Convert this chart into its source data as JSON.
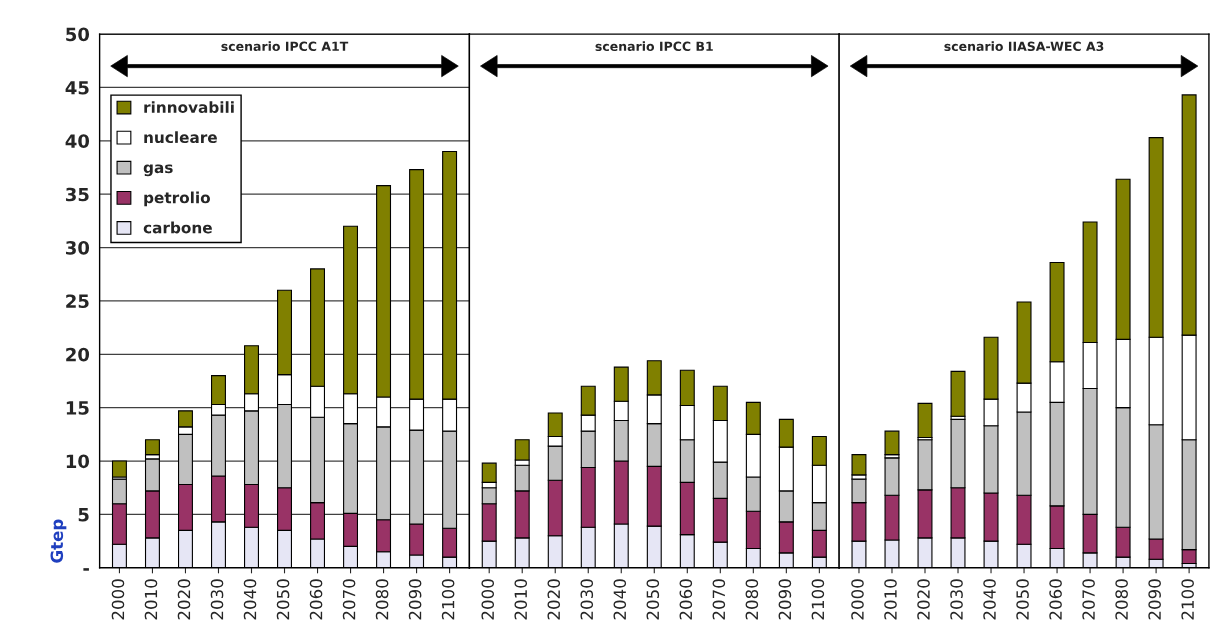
{
  "chart_data": [
    {
      "type": "bar",
      "title": "scenario IPCC A1T",
      "ylabel": "Gtep",
      "stacked": true,
      "legend": "top left",
      "grid": "y",
      "categories": [
        "2000",
        "2010",
        "2020",
        "2030",
        "2040",
        "2050",
        "2060",
        "2070",
        "2080",
        "2090",
        "2100"
      ],
      "ylim": [
        0,
        50
      ],
      "yticks": [
        {
          "value": 0,
          "label": "-"
        },
        5,
        10,
        15,
        20,
        25,
        30,
        35,
        40,
        45,
        50
      ],
      "series": [
        {
          "name": "carbone",
          "color": "#e6e6f5",
          "values": [
            2.2,
            2.8,
            3.5,
            4.3,
            3.8,
            3.5,
            2.7,
            2.0,
            1.5,
            1.2,
            1.0
          ]
        },
        {
          "name": "petrolio",
          "color": "#993366",
          "values": [
            3.8,
            4.4,
            4.3,
            4.3,
            4.0,
            4.0,
            3.4,
            3.1,
            3.0,
            2.9,
            2.7
          ]
        },
        {
          "name": "gas",
          "color": "#c0c0c0",
          "values": [
            2.3,
            3.0,
            4.7,
            5.7,
            6.9,
            7.8,
            8.0,
            8.4,
            8.7,
            8.8,
            9.1
          ]
        },
        {
          "name": "nucleare",
          "color": "#ffffff",
          "values": [
            0.2,
            0.4,
            0.7,
            1.0,
            1.6,
            2.8,
            2.9,
            2.8,
            2.8,
            2.9,
            3.0
          ]
        },
        {
          "name": "rinnovabili",
          "color": "#808000",
          "values": [
            1.5,
            1.4,
            1.5,
            2.7,
            4.5,
            7.9,
            11.0,
            15.7,
            19.8,
            21.5,
            23.2
          ]
        }
      ]
    },
    {
      "type": "bar",
      "title": "scenario IPCC B1",
      "stacked": true,
      "grid": "y",
      "tick_labels": "x",
      "categories": [
        "2000",
        "2010",
        "2020",
        "2030",
        "2040",
        "2050",
        "2060",
        "2070",
        "2080",
        "2090",
        "2100"
      ],
      "ylim": [
        0,
        50
      ],
      "series": [
        {
          "color": "#e6e6f5",
          "values": [
            2.5,
            2.8,
            3.0,
            3.8,
            4.1,
            3.9,
            3.1,
            2.4,
            1.8,
            1.4,
            1.0
          ]
        },
        {
          "color": "#993366",
          "values": [
            3.5,
            4.4,
            5.2,
            5.6,
            5.9,
            5.6,
            4.9,
            4.1,
            3.5,
            2.9,
            2.5
          ]
        },
        {
          "color": "#c0c0c0",
          "values": [
            1.5,
            2.4,
            3.2,
            3.4,
            3.8,
            4.0,
            4.0,
            3.4,
            3.2,
            2.9,
            2.6
          ]
        },
        {
          "color": "#ffffff",
          "values": [
            0.5,
            0.5,
            0.9,
            1.5,
            1.8,
            2.7,
            3.2,
            3.9,
            4.0,
            4.1,
            3.5
          ]
        },
        {
          "color": "#808000",
          "values": [
            1.8,
            1.9,
            2.2,
            2.7,
            3.2,
            3.2,
            3.3,
            3.2,
            3.0,
            2.6,
            2.7
          ]
        }
      ]
    },
    {
      "type": "bar",
      "title": "scenario IIASA-WEC A3",
      "stacked": true,
      "grid": "y",
      "tick_labels": "x",
      "categories": [
        "2000",
        "2010",
        "2020",
        "2030",
        "2040",
        "2050",
        "2060",
        "2070",
        "2080",
        "2090",
        "2100"
      ],
      "ylim": [
        0,
        50
      ],
      "series": [
        {
          "color": "#e6e6f5",
          "values": [
            2.5,
            2.6,
            2.8,
            2.8,
            2.5,
            2.2,
            1.8,
            1.4,
            1.0,
            0.8,
            0.4
          ]
        },
        {
          "color": "#993366",
          "values": [
            3.6,
            4.2,
            4.5,
            4.7,
            4.5,
            4.6,
            4.0,
            3.6,
            2.8,
            1.9,
            1.3
          ]
        },
        {
          "color": "#c0c0c0",
          "values": [
            2.2,
            3.5,
            4.7,
            6.4,
            6.3,
            7.8,
            9.7,
            11.8,
            11.2,
            10.7,
            10.3
          ]
        },
        {
          "color": "#ffffff",
          "values": [
            0.4,
            0.3,
            0.2,
            0.3,
            2.5,
            2.7,
            3.8,
            4.3,
            6.4,
            8.2,
            9.8
          ]
        },
        {
          "color": "#808000",
          "values": [
            1.9,
            2.2,
            3.2,
            4.2,
            5.8,
            7.6,
            9.3,
            11.3,
            15.0,
            18.7,
            22.5
          ]
        }
      ]
    }
  ]
}
